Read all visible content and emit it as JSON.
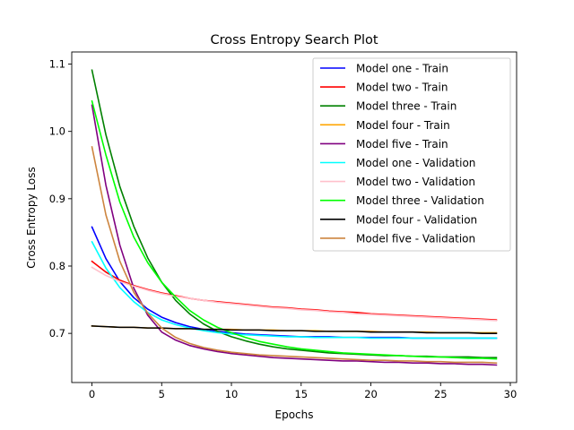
{
  "chart_data": {
    "type": "line",
    "title": "Cross Entropy Search Plot",
    "xlabel": "Epochs",
    "ylabel": "Cross Entropy Loss",
    "xlim": [
      -1.45,
      30.45
    ],
    "ylim": [
      0.627,
      1.118
    ],
    "xticks": [
      0,
      5,
      10,
      15,
      20,
      25,
      30
    ],
    "yticks": [
      0.7,
      0.8,
      0.9,
      1.0,
      1.1
    ],
    "xtick_labels": [
      "0",
      "5",
      "10",
      "15",
      "20",
      "25",
      "30"
    ],
    "ytick_labels": [
      "0.7",
      "0.8",
      "0.9",
      "1.0",
      "1.1"
    ],
    "grid": false,
    "legend_position": "top-right",
    "x": [
      0,
      1,
      2,
      3,
      4,
      5,
      6,
      7,
      8,
      9,
      10,
      11,
      12,
      13,
      14,
      15,
      16,
      17,
      18,
      19,
      20,
      21,
      22,
      23,
      24,
      25,
      26,
      27,
      28,
      29
    ],
    "series": [
      {
        "name": "Model one - Train",
        "color": "#0000ff",
        "values": [
          0.858,
          0.811,
          0.777,
          0.753,
          0.736,
          0.724,
          0.716,
          0.71,
          0.706,
          0.703,
          0.701,
          0.699,
          0.698,
          0.697,
          0.696,
          0.695,
          0.695,
          0.695,
          0.694,
          0.694,
          0.694,
          0.694,
          0.694,
          0.693,
          0.693,
          0.693,
          0.693,
          0.693,
          0.693,
          0.693
        ]
      },
      {
        "name": "Model two - Train",
        "color": "#ff0000",
        "values": [
          0.807,
          0.791,
          0.779,
          0.771,
          0.765,
          0.76,
          0.756,
          0.752,
          0.749,
          0.747,
          0.745,
          0.743,
          0.741,
          0.739,
          0.738,
          0.736,
          0.735,
          0.733,
          0.732,
          0.731,
          0.729,
          0.728,
          0.727,
          0.726,
          0.725,
          0.724,
          0.723,
          0.722,
          0.721,
          0.72
        ]
      },
      {
        "name": "Model three - Train",
        "color": "#008000",
        "values": [
          1.091,
          0.995,
          0.918,
          0.859,
          0.812,
          0.776,
          0.749,
          0.729,
          0.714,
          0.703,
          0.695,
          0.689,
          0.684,
          0.68,
          0.677,
          0.675,
          0.673,
          0.671,
          0.67,
          0.669,
          0.668,
          0.667,
          0.667,
          0.666,
          0.666,
          0.665,
          0.665,
          0.665,
          0.664,
          0.664
        ]
      },
      {
        "name": "Model four - Train",
        "color": "#ffa500",
        "values": [
          0.711,
          0.71,
          0.709,
          0.709,
          0.708,
          0.708,
          0.707,
          0.707,
          0.706,
          0.706,
          0.706,
          0.705,
          0.705,
          0.705,
          0.704,
          0.704,
          0.704,
          0.703,
          0.703,
          0.703,
          0.703,
          0.702,
          0.702,
          0.702,
          0.702,
          0.701,
          0.701,
          0.701,
          0.701,
          0.701
        ]
      },
      {
        "name": "Model five - Train",
        "color": "#800080",
        "values": [
          1.039,
          0.92,
          0.831,
          0.767,
          0.727,
          0.702,
          0.69,
          0.682,
          0.677,
          0.673,
          0.67,
          0.668,
          0.666,
          0.664,
          0.663,
          0.662,
          0.661,
          0.66,
          0.659,
          0.659,
          0.658,
          0.657,
          0.657,
          0.656,
          0.656,
          0.655,
          0.655,
          0.654,
          0.654,
          0.653
        ]
      },
      {
        "name": "Model one - Validation",
        "color": "#00ffff",
        "values": [
          0.836,
          0.797,
          0.768,
          0.747,
          0.731,
          0.72,
          0.713,
          0.708,
          0.704,
          0.701,
          0.699,
          0.698,
          0.697,
          0.696,
          0.695,
          0.695,
          0.694,
          0.694,
          0.694,
          0.694,
          0.693,
          0.693,
          0.693,
          0.693,
          0.693,
          0.693,
          0.693,
          0.693,
          0.693,
          0.693
        ]
      },
      {
        "name": "Model two - Validation",
        "color": "#ffc0cb",
        "values": [
          0.798,
          0.786,
          0.777,
          0.77,
          0.764,
          0.759,
          0.755,
          0.752,
          0.749,
          0.746,
          0.744,
          0.742,
          0.74,
          0.738,
          0.737,
          0.735,
          0.734,
          0.732,
          0.731,
          0.729,
          0.728,
          0.727,
          0.726,
          0.725,
          0.724,
          0.723,
          0.722,
          0.721,
          0.72,
          0.719
        ]
      },
      {
        "name": "Model three - Validation",
        "color": "#00ff00",
        "values": [
          1.045,
          0.965,
          0.895,
          0.843,
          0.805,
          0.776,
          0.754,
          0.734,
          0.72,
          0.709,
          0.701,
          0.694,
          0.688,
          0.684,
          0.68,
          0.677,
          0.675,
          0.673,
          0.671,
          0.67,
          0.669,
          0.668,
          0.667,
          0.666,
          0.665,
          0.665,
          0.664,
          0.663,
          0.663,
          0.662
        ]
      },
      {
        "name": "Model four - Validation",
        "color": "#000000",
        "values": [
          0.711,
          0.71,
          0.709,
          0.709,
          0.708,
          0.708,
          0.707,
          0.707,
          0.706,
          0.706,
          0.705,
          0.705,
          0.705,
          0.704,
          0.704,
          0.704,
          0.703,
          0.703,
          0.703,
          0.703,
          0.702,
          0.702,
          0.702,
          0.702,
          0.701,
          0.701,
          0.701,
          0.701,
          0.7,
          0.7
        ]
      },
      {
        "name": "Model five - Validation",
        "color": "#cd853f",
        "values": [
          0.977,
          0.876,
          0.807,
          0.761,
          0.73,
          0.708,
          0.694,
          0.685,
          0.679,
          0.675,
          0.672,
          0.67,
          0.668,
          0.667,
          0.666,
          0.665,
          0.664,
          0.663,
          0.662,
          0.661,
          0.66,
          0.66,
          0.659,
          0.659,
          0.658,
          0.658,
          0.657,
          0.657,
          0.657,
          0.656
        ]
      }
    ]
  }
}
